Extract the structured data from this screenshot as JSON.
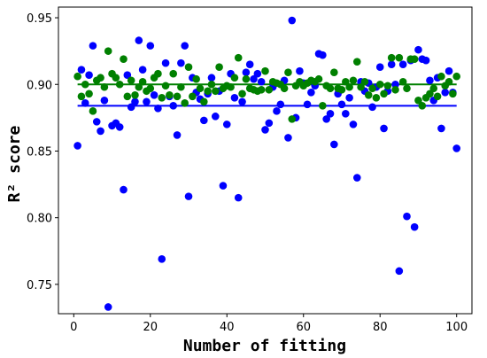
{
  "chart_data": {
    "type": "scatter",
    "xlabel": "Number of fitting",
    "ylabel": "R² score",
    "xlim": [
      -4,
      104
    ],
    "ylim": [
      0.728,
      0.958
    ],
    "x_ticks": [
      "0",
      "20",
      "40",
      "60",
      "80",
      "100"
    ],
    "y_ticks": [
      "0.75",
      "0.80",
      "0.85",
      "0.90",
      "0.95"
    ],
    "grid": false,
    "series": [
      {
        "color": "#0000ff",
        "marker": "circle",
        "x": [
          1,
          2,
          3,
          4,
          5,
          6,
          7,
          8,
          9,
          10,
          11,
          12,
          13,
          14,
          15,
          16,
          17,
          18,
          19,
          20,
          21,
          22,
          23,
          24,
          25,
          26,
          27,
          28,
          29,
          30,
          31,
          32,
          33,
          34,
          35,
          36,
          37,
          38,
          39,
          40,
          41,
          42,
          43,
          44,
          45,
          46,
          47,
          48,
          49,
          50,
          51,
          52,
          53,
          54,
          55,
          56,
          57,
          58,
          59,
          60,
          61,
          62,
          63,
          64,
          65,
          66,
          67,
          68,
          69,
          70,
          71,
          72,
          73,
          74,
          75,
          76,
          77,
          78,
          79,
          80,
          81,
          82,
          83,
          84,
          85,
          86,
          87,
          88,
          89,
          90,
          91,
          92,
          93,
          94,
          95,
          96,
          97,
          98,
          99,
          100
        ],
        "y": [
          0.854,
          0.911,
          0.886,
          0.907,
          0.929,
          0.872,
          0.865,
          0.888,
          0.733,
          0.869,
          0.871,
          0.868,
          0.821,
          0.907,
          0.883,
          0.887,
          0.933,
          0.911,
          0.887,
          0.929,
          0.892,
          0.882,
          0.769,
          0.916,
          0.891,
          0.884,
          0.862,
          0.916,
          0.929,
          0.816,
          0.905,
          0.894,
          0.889,
          0.873,
          0.893,
          0.905,
          0.876,
          0.895,
          0.824,
          0.87,
          0.908,
          0.89,
          0.815,
          0.887,
          0.909,
          0.915,
          0.904,
          0.908,
          0.902,
          0.866,
          0.871,
          0.898,
          0.88,
          0.885,
          0.903,
          0.86,
          0.948,
          0.875,
          0.91,
          0.901,
          0.885,
          0.894,
          0.899,
          0.923,
          0.922,
          0.874,
          0.878,
          0.855,
          0.893,
          0.885,
          0.878,
          0.89,
          0.87,
          0.83,
          0.902,
          0.895,
          0.901,
          0.883,
          0.898,
          0.913,
          0.867,
          0.895,
          0.915,
          0.9,
          0.76,
          0.915,
          0.801,
          0.918,
          0.793,
          0.926,
          0.919,
          0.918,
          0.903,
          0.888,
          0.905,
          0.867,
          0.894,
          0.91,
          0.894,
          0.852
        ],
        "fit_line": [
          0.884,
          0.884
        ]
      },
      {
        "color": "#008000",
        "marker": "circle",
        "x": [
          1,
          2,
          3,
          4,
          5,
          6,
          7,
          8,
          9,
          10,
          11,
          12,
          13,
          14,
          15,
          16,
          17,
          18,
          19,
          20,
          21,
          22,
          23,
          24,
          25,
          26,
          27,
          28,
          29,
          30,
          31,
          32,
          33,
          34,
          35,
          36,
          37,
          38,
          39,
          40,
          41,
          42,
          43,
          44,
          45,
          46,
          47,
          48,
          49,
          50,
          51,
          52,
          53,
          54,
          55,
          56,
          57,
          58,
          59,
          60,
          61,
          62,
          63,
          64,
          65,
          66,
          67,
          68,
          69,
          70,
          71,
          72,
          73,
          74,
          75,
          76,
          77,
          78,
          79,
          80,
          81,
          82,
          83,
          84,
          85,
          86,
          87,
          88,
          89,
          90,
          91,
          92,
          93,
          94,
          95,
          96,
          97,
          98,
          99,
          100
        ],
        "y": [
          0.906,
          0.891,
          0.9,
          0.893,
          0.88,
          0.903,
          0.905,
          0.898,
          0.925,
          0.908,
          0.905,
          0.9,
          0.919,
          0.891,
          0.903,
          0.892,
          0.898,
          0.902,
          0.895,
          0.897,
          0.905,
          0.908,
          0.89,
          0.899,
          0.892,
          0.908,
          0.891,
          0.898,
          0.886,
          0.913,
          0.891,
          0.904,
          0.897,
          0.887,
          0.895,
          0.9,
          0.895,
          0.913,
          0.897,
          0.899,
          0.898,
          0.905,
          0.92,
          0.893,
          0.904,
          0.897,
          0.896,
          0.895,
          0.896,
          0.91,
          0.896,
          0.902,
          0.901,
          0.9,
          0.897,
          0.909,
          0.874,
          0.899,
          0.902,
          0.899,
          0.901,
          0.903,
          0.902,
          0.904,
          0.884,
          0.899,
          0.897,
          0.909,
          0.897,
          0.896,
          0.902,
          0.898,
          0.903,
          0.917,
          0.898,
          0.902,
          0.892,
          0.897,
          0.89,
          0.9,
          0.893,
          0.899,
          0.92,
          0.896,
          0.92,
          0.902,
          0.897,
          0.919,
          0.919,
          0.888,
          0.884,
          0.89,
          0.893,
          0.897,
          0.891,
          0.906,
          0.899,
          0.902,
          0.893,
          0.906
        ],
        "fit_line": [
          0.9,
          0.9
        ]
      }
    ]
  }
}
